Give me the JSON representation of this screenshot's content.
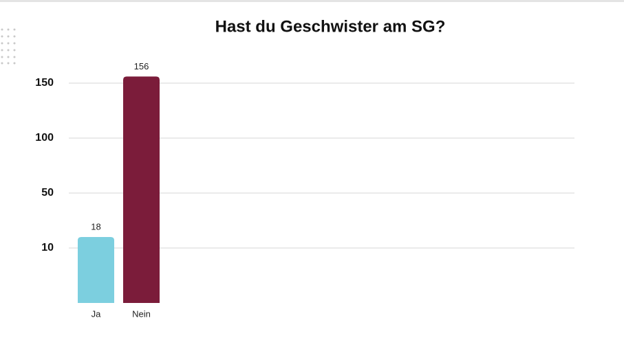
{
  "chart_data": {
    "type": "bar",
    "title": "Hast du Geschwister am SG?",
    "categories": [
      "Ja",
      "Nein"
    ],
    "values": [
      18,
      156
    ],
    "colors": [
      "#7ccfdf",
      "#7b1c3a"
    ],
    "ylim": [
      0,
      160
    ],
    "yticks": [
      10,
      50,
      100,
      150
    ],
    "grid": true
  }
}
